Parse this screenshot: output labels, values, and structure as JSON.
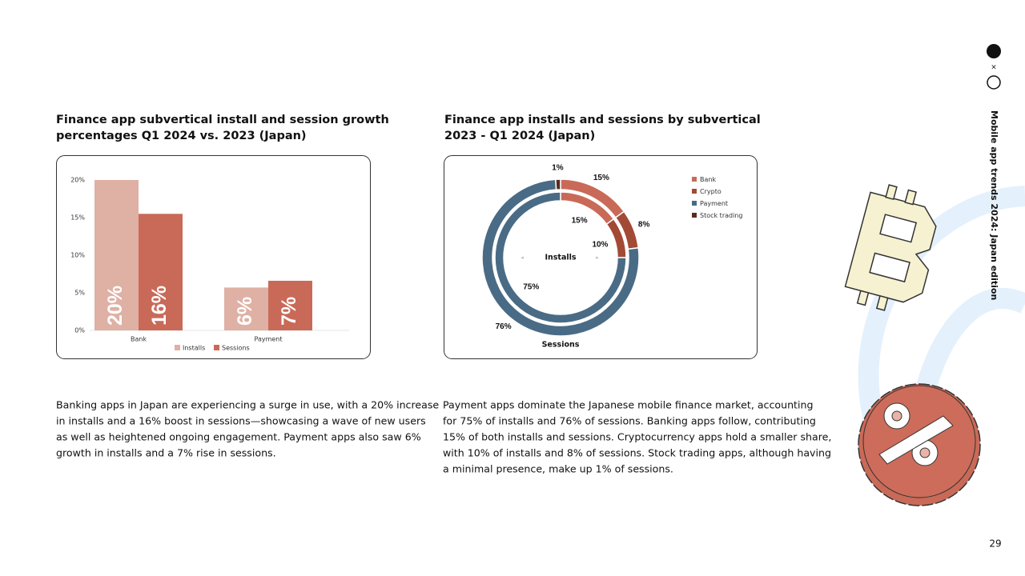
{
  "side_title": "Mobile app trends 2024: Japan edition",
  "page_number": "29",
  "chart_data": [
    {
      "type": "bar",
      "title": [
        "Finance app subvertical install and session growth",
        "percentages Q1 2024 vs. 2023 (Japan)"
      ],
      "categories": [
        "Bank",
        "Payment"
      ],
      "series": [
        {
          "name": "Installs",
          "color": "#dfb0a4",
          "values": [
            20,
            5.7
          ],
          "value_labels": [
            "20%",
            "6%"
          ]
        },
        {
          "name": "Sessions",
          "color": "#c96a58",
          "values": [
            15.5,
            6.6
          ],
          "value_labels": [
            "16%",
            "7%"
          ]
        }
      ],
      "ylim": [
        0,
        20
      ],
      "yticks": [
        {
          "value": 0,
          "label": "0%"
        },
        {
          "value": 5,
          "label": "5%"
        },
        {
          "value": 10,
          "label": "10%"
        },
        {
          "value": 15,
          "label": "15%"
        },
        {
          "value": 20,
          "label": "20%"
        }
      ],
      "grid": false,
      "legend": "bottom"
    },
    {
      "type": "donut",
      "title": [
        "Finance app installs and sessions by subvertical",
        "2023 - Q1 2024 (Japan)"
      ],
      "categories": [
        "Bank",
        "Crypto",
        "Payment",
        "Stock trading"
      ],
      "colors": [
        "#c96a58",
        "#a24a36",
        "#4a6b85",
        "#5a2a20"
      ],
      "series": [
        {
          "name": "Sessions",
          "values": [
            15,
            8,
            76,
            1
          ],
          "value_labels": [
            "15%",
            "8%",
            "76%",
            "1%"
          ]
        },
        {
          "name": "Installs",
          "values": [
            15,
            10,
            75,
            null
          ],
          "value_labels": [
            "15%",
            "10%",
            "75%",
            null
          ]
        }
      ],
      "legend": "top-right"
    }
  ],
  "paragraphs": [
    [
      "Banking apps in Japan are experiencing a surge in use, with a 20% increase",
      "in installs and a 16% boost in sessions—showcasing a wave of new users",
      "as well as heightened ongoing engagement. Payment apps also saw 6%",
      "growth in installs and a 7% rise in sessions."
    ],
    [
      "Payment apps dominate the Japanese mobile finance market, accounting",
      "for 75% of installs and 76% of sessions. Banking apps follow, contributing",
      "15% of both installs and sessions. Cryptocurrency apps hold a smaller share,",
      "with 10% of installs and 8% of sessions. Stock trading apps, although having",
      "a minimal presence, make up 1% of sessions."
    ]
  ]
}
